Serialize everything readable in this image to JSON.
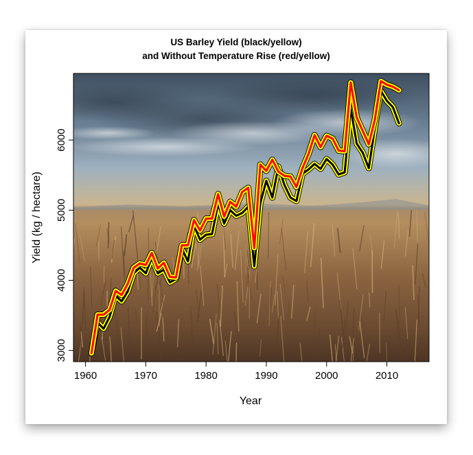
{
  "chart_data": {
    "type": "line",
    "title": "US Barley Yield (black/yellow)",
    "subtitle": "and Without Temperature Rise (red/yellow)",
    "xlabel": "Year",
    "ylabel": "Yield (kg / hectare)",
    "xlim": [
      1958,
      2017
    ],
    "ylim": [
      2840,
      6950
    ],
    "xticks": [
      1960,
      1970,
      1980,
      1990,
      2000,
      2010
    ],
    "yticks": [
      3000,
      4000,
      5000,
      6000
    ],
    "grid": false,
    "background": "wheat-field-photo",
    "x": [
      1961,
      1962,
      1963,
      1964,
      1965,
      1966,
      1967,
      1968,
      1969,
      1970,
      1971,
      1972,
      1973,
      1974,
      1975,
      1976,
      1977,
      1978,
      1979,
      1980,
      1981,
      1982,
      1983,
      1984,
      1985,
      1986,
      1987,
      1988,
      1989,
      1990,
      1991,
      1992,
      1993,
      1994,
      1995,
      1996,
      1997,
      1998,
      1999,
      2000,
      2001,
      2002,
      2003,
      2004,
      2005,
      2006,
      2007,
      2008,
      2009,
      2010,
      2011,
      2012
    ],
    "series": [
      {
        "name": "black/yellow",
        "stroke": "#000000",
        "halo": "#ffff00",
        "values": [
          2960,
          3400,
          3310,
          3480,
          3780,
          3700,
          3840,
          4100,
          4180,
          4100,
          4320,
          4100,
          4150,
          3970,
          4020,
          4450,
          4270,
          4780,
          4580,
          4650,
          4660,
          5090,
          4810,
          5000,
          4920,
          4960,
          5050,
          4200,
          5100,
          5420,
          5180,
          5620,
          5360,
          5180,
          5130,
          5520,
          5580,
          5660,
          5590,
          5730,
          5650,
          5510,
          5540,
          6450,
          5950,
          5820,
          5600,
          6170,
          6700,
          6560,
          6470,
          6240
        ]
      },
      {
        "name": "red/yellow",
        "stroke": "#ff0000",
        "halo": "#ffff00",
        "values": [
          2960,
          3510,
          3510,
          3580,
          3850,
          3790,
          3950,
          4180,
          4240,
          4220,
          4390,
          4170,
          4250,
          4050,
          4040,
          4500,
          4500,
          4860,
          4710,
          4880,
          4880,
          5230,
          4910,
          5120,
          5050,
          5260,
          5320,
          4460,
          5650,
          5560,
          5720,
          5550,
          5490,
          5480,
          5330,
          5600,
          5800,
          6070,
          5900,
          6060,
          6020,
          5850,
          5840,
          6820,
          6320,
          6130,
          5940,
          6290,
          6840,
          6790,
          6760,
          6710
        ]
      }
    ]
  }
}
